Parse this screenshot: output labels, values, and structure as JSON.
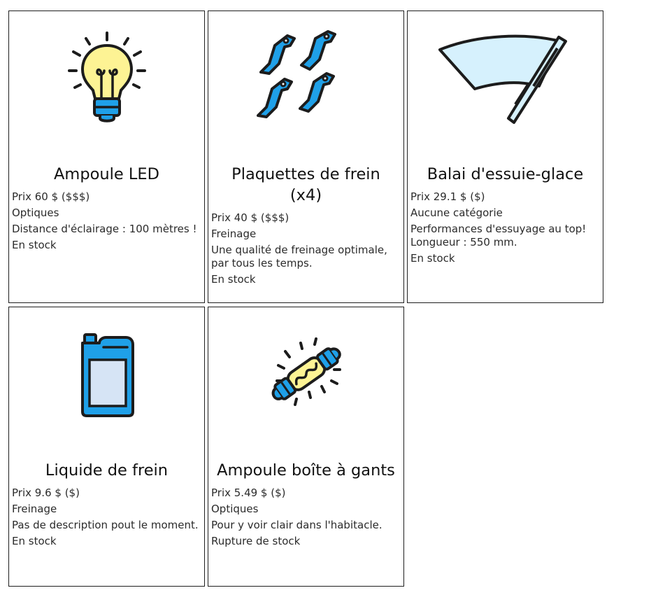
{
  "products": [
    {
      "name": "Ampoule LED",
      "price": "Prix 60 $ ($$$)",
      "category": "Optiques",
      "description": "Distance d'éclairage : 100 mètres !",
      "stock": "En stock",
      "icon": "led-bulb-icon"
    },
    {
      "name": "Plaquettes de frein (x4)",
      "price": "Prix 40 $ ($$$)",
      "category": "Freinage",
      "description": "Une qualité de freinage optimale, par tous les temps.",
      "stock": "En stock",
      "icon": "brake-pads-icon"
    },
    {
      "name": "Balai d'essuie-glace",
      "price": "Prix 29.1 $ ($)",
      "category": "Aucune catégorie",
      "description": "Performances d'essuyage au top! Longueur : 550 mm.",
      "stock": "En stock",
      "icon": "wiper-blade-icon"
    },
    {
      "name": "Liquide de frein",
      "price": "Prix 9.6 $ ($)",
      "category": "Freinage",
      "description": "Pas de description pout le moment.",
      "stock": "En stock",
      "icon": "brake-fluid-icon"
    },
    {
      "name": "Ampoule boîte à gants",
      "price": "Prix 5.49 $ ($)",
      "category": "Optiques",
      "description": "Pour y voir clair dans l'habitacle.",
      "stock": "Rupture de stock",
      "icon": "festoon-bulb-icon"
    }
  ],
  "colors": {
    "blue": "#1fa0e8",
    "yellow": "#fdf394",
    "pale_blue": "#d6f1fd",
    "outline": "#1c1c1c"
  }
}
